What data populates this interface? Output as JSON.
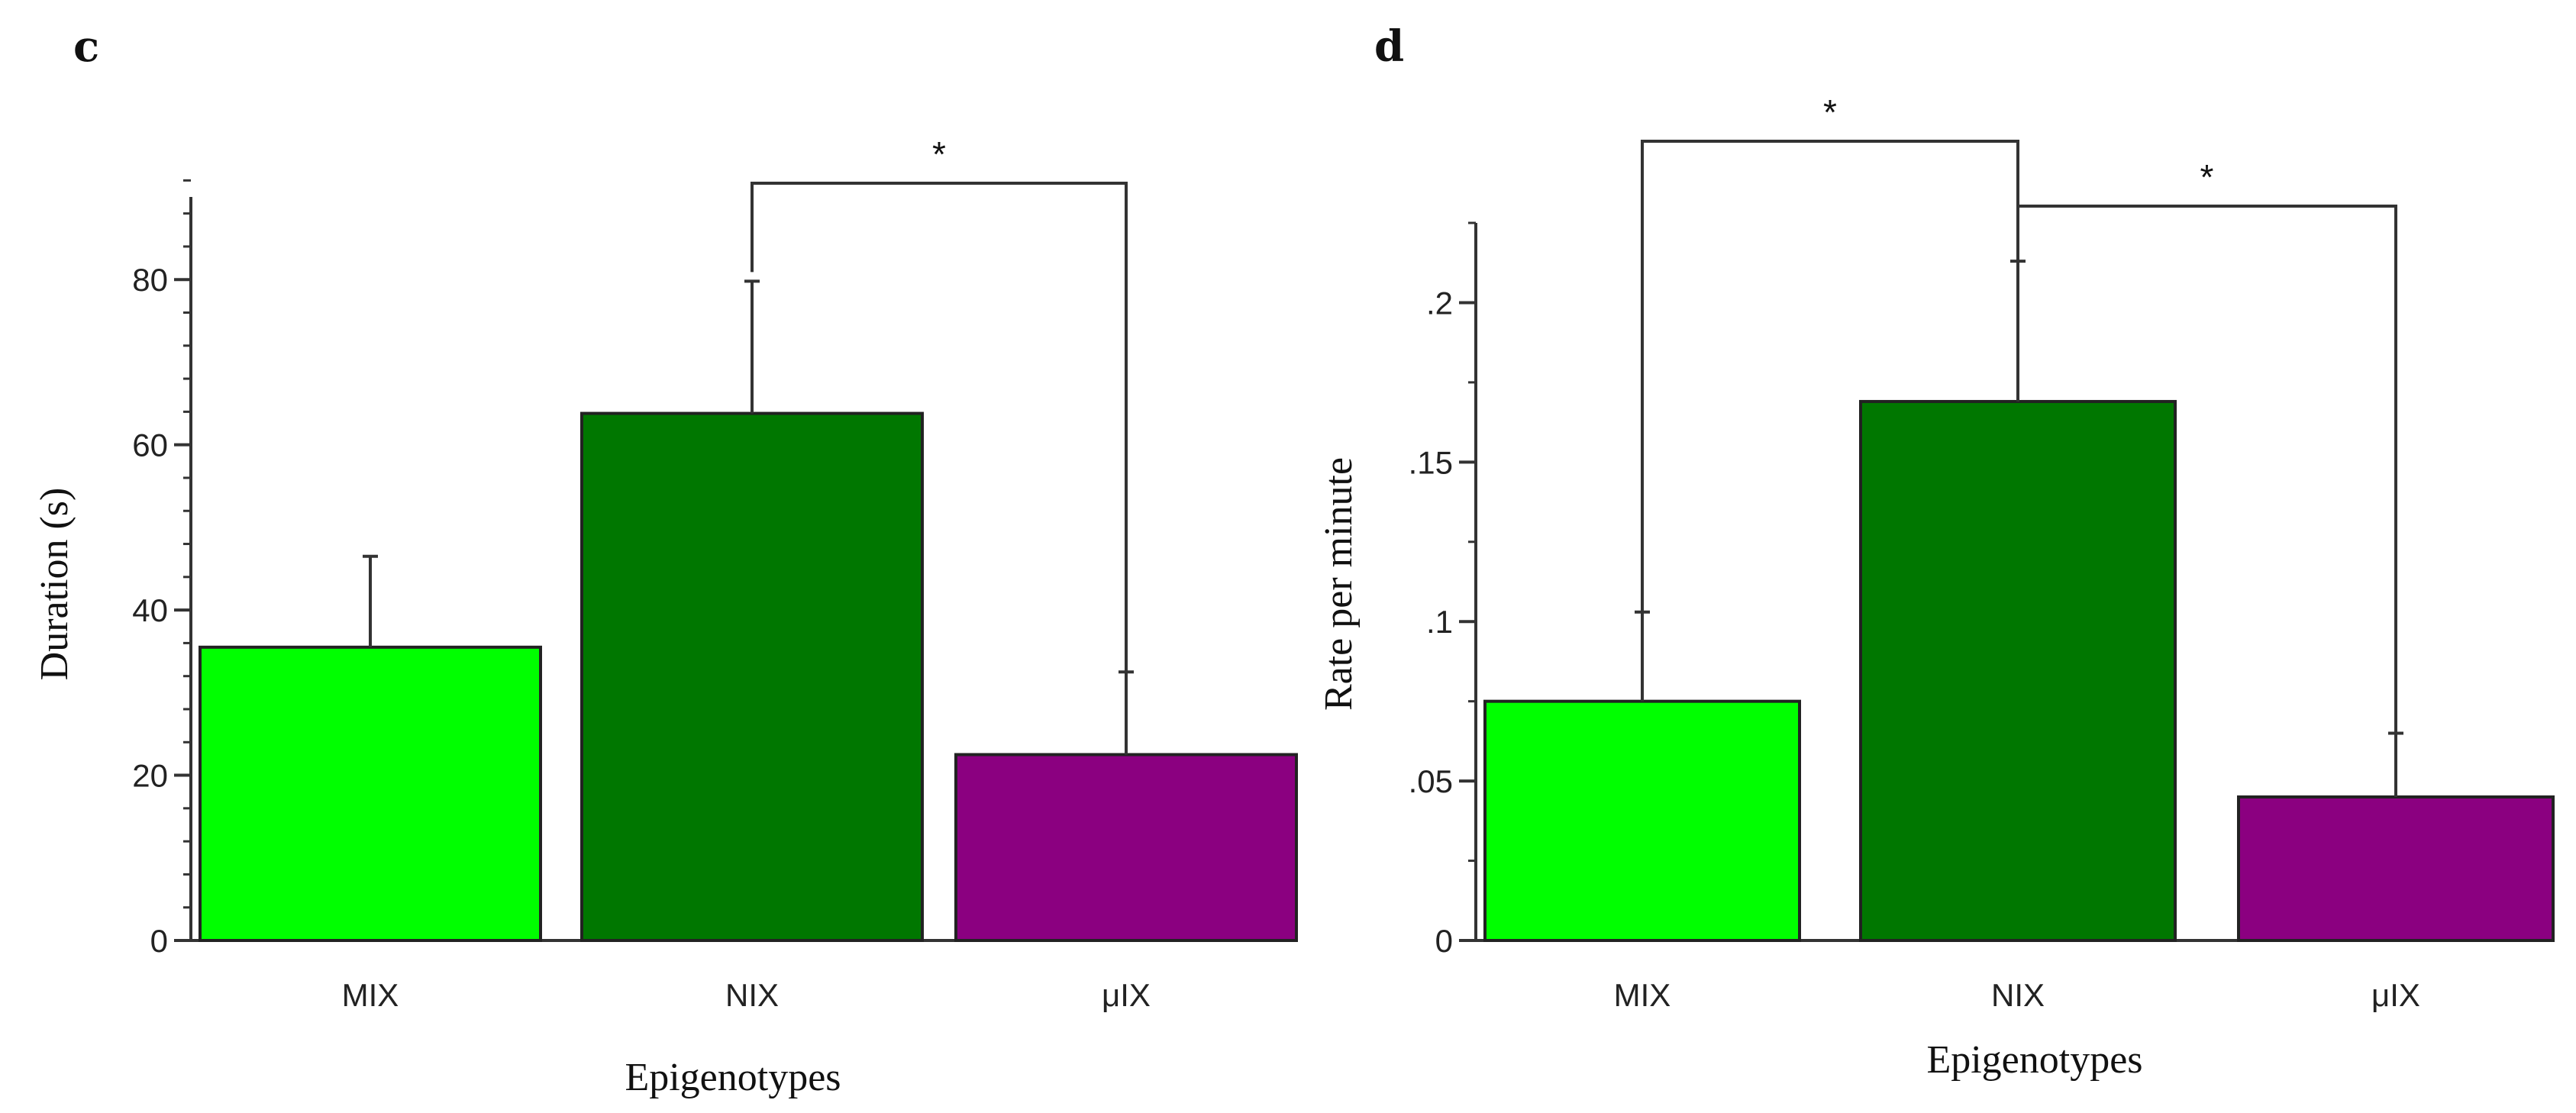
{
  "figure": {
    "panels": [
      "c",
      "d"
    ]
  },
  "chart_data": [
    {
      "panel": "c",
      "type": "bar",
      "categories": [
        "MIX",
        "NIX",
        "μIX"
      ],
      "values": [
        35.5,
        63.8,
        22.5
      ],
      "error_upper": [
        46.5,
        79.8,
        32.5
      ],
      "colors": [
        "#00ff00",
        "#007700",
        "#8b0080"
      ],
      "xlabel": "Epigenotypes",
      "ylabel": "Duration (s)",
      "ylim": [
        0,
        90
      ],
      "yticks": [
        0,
        20,
        40,
        60,
        80
      ],
      "ytick_labels": [
        "0",
        "20",
        "40",
        "60",
        "80"
      ],
      "minor_tick_step": 4,
      "grid": false,
      "significance": [
        {
          "from": 1,
          "to": 2,
          "label": "*"
        }
      ]
    },
    {
      "panel": "d",
      "type": "bar",
      "categories": [
        "MIX",
        "NIX",
        "μIX"
      ],
      "values": [
        0.075,
        0.169,
        0.045
      ],
      "error_upper": [
        0.103,
        0.213,
        0.065
      ],
      "colors": [
        "#00ff00",
        "#007700",
        "#8b0080"
      ],
      "xlabel": "Epigenotypes",
      "ylabel": "Rate per minute",
      "ylim": [
        0,
        0.225
      ],
      "yticks": [
        0,
        0.05,
        0.1,
        0.15,
        0.2
      ],
      "ytick_labels": [
        "0",
        ".05",
        ".1",
        ".15",
        ".2"
      ],
      "minor_tick_step": 0.025,
      "grid": false,
      "significance": [
        {
          "from": 0,
          "to": 1,
          "label": "*"
        },
        {
          "from": 1,
          "to": 2,
          "label": "*"
        }
      ]
    }
  ]
}
